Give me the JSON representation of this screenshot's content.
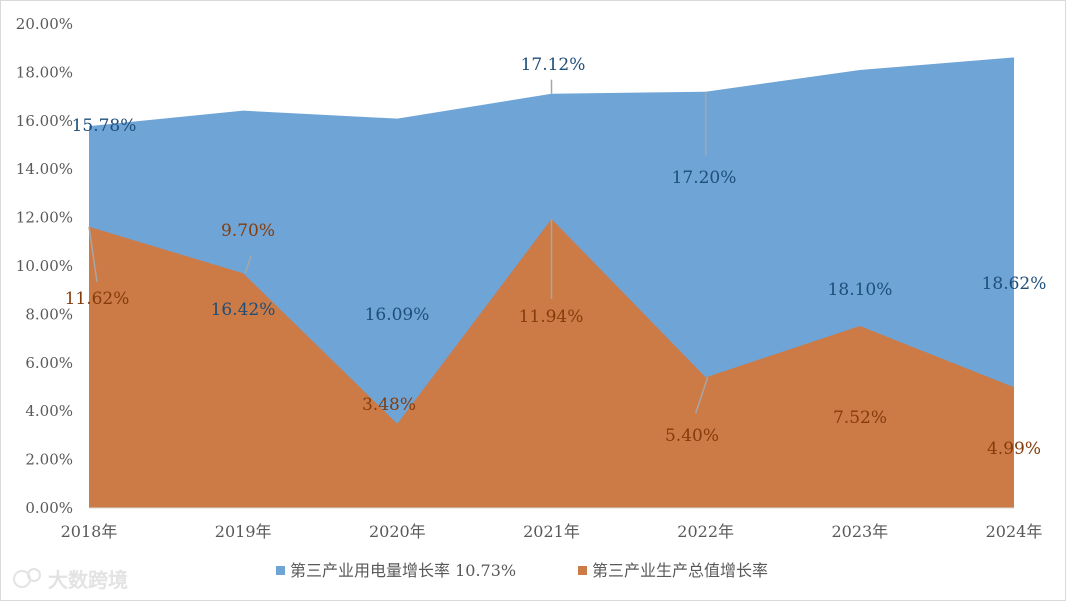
{
  "chart_data": {
    "type": "area",
    "categories": [
      "2018年",
      "2019年",
      "2020年",
      "2021年",
      "2022年",
      "2023年",
      "2024年"
    ],
    "series": [
      {
        "name": "第三产业用电量增长率 10.73%",
        "color": "#6fa4d6",
        "label_color": "#1f4e79",
        "values": [
          15.78,
          16.42,
          16.09,
          17.12,
          17.2,
          18.1,
          18.62
        ],
        "labels": [
          "15.78%",
          "16.42%",
          "16.09%",
          "17.12%",
          "17.20%",
          "18.10%",
          "18.62%"
        ]
      },
      {
        "name": "第三产业生产总值增长率",
        "color": "#cc7a46",
        "label_color": "#843c0c",
        "values": [
          11.62,
          9.7,
          3.48,
          11.94,
          5.4,
          7.52,
          4.99
        ],
        "labels": [
          "11.62%",
          "9.70%",
          "3.48%",
          "11.94%",
          "5.40%",
          "7.52%",
          "4.99%"
        ]
      }
    ],
    "ylim": [
      0,
      20
    ],
    "yticks": [
      "0.00%",
      "2.00%",
      "4.00%",
      "6.00%",
      "8.00%",
      "10.00%",
      "12.00%",
      "14.00%",
      "16.00%",
      "18.00%",
      "20.00%"
    ],
    "grid": false,
    "legend_position": "bottom"
  },
  "watermark": "大数跨境"
}
